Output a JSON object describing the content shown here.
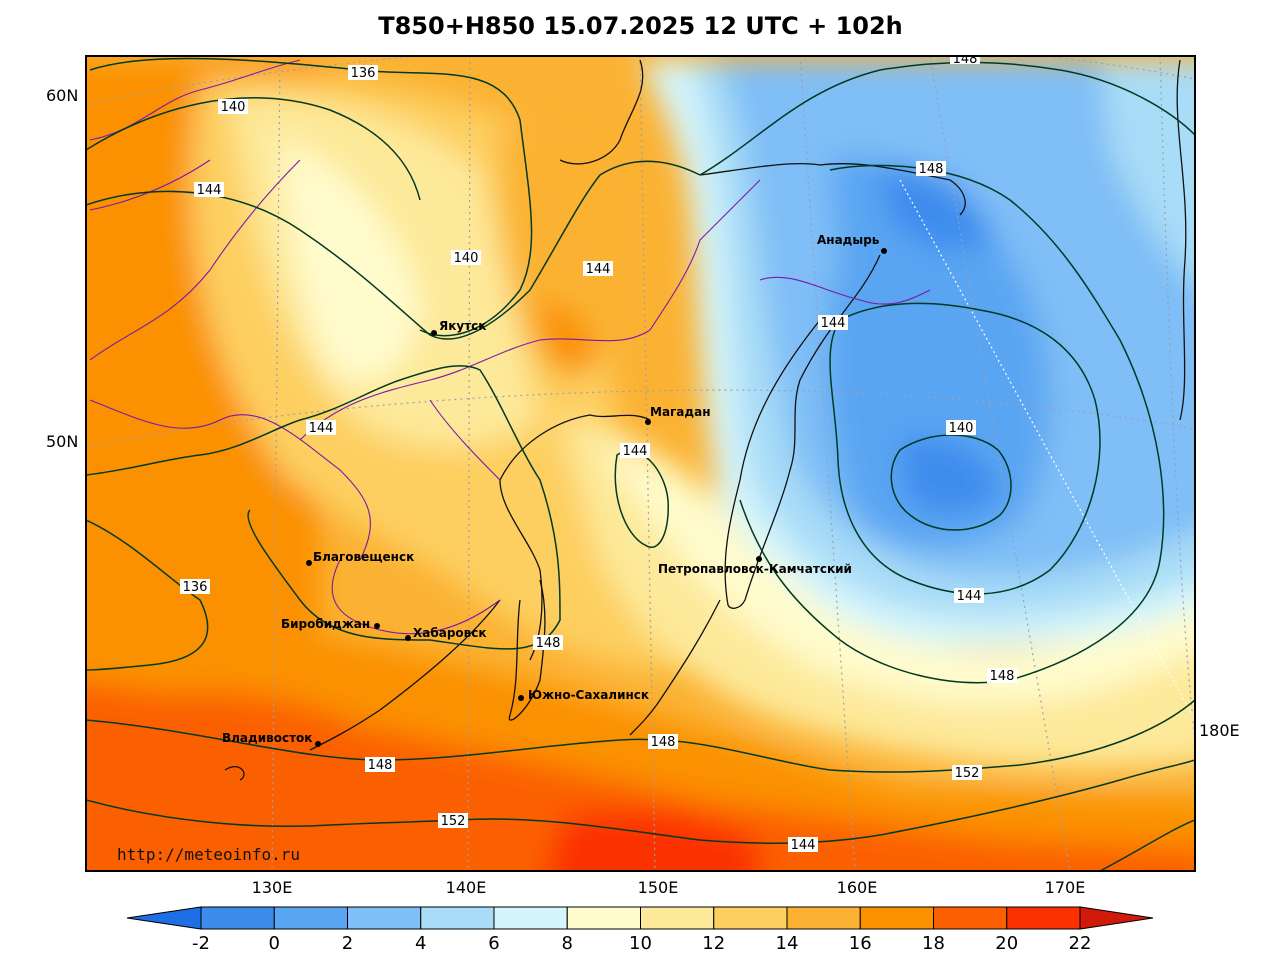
{
  "title": "T850+H850 15.07.2025 12 UTC + 102h",
  "watermark": "http://meteoinfo.ru",
  "lat_labels": [
    {
      "id": "lat-60",
      "text": "60N"
    },
    {
      "id": "lat-50",
      "text": "50N"
    }
  ],
  "lon_labels": [
    {
      "id": "lon-130",
      "text": "130E"
    },
    {
      "id": "lon-140",
      "text": "140E"
    },
    {
      "id": "lon-150",
      "text": "150E"
    },
    {
      "id": "lon-160",
      "text": "160E"
    },
    {
      "id": "lon-170",
      "text": "170E"
    },
    {
      "id": "lon-180",
      "text": "180E"
    }
  ],
  "cities": [
    {
      "id": "yakutsk",
      "name": "Якутск"
    },
    {
      "id": "magadan",
      "name": "Магадан"
    },
    {
      "id": "anadyr",
      "name": "Анадырь"
    },
    {
      "id": "blagoveshchensk",
      "name": "Благовещенск"
    },
    {
      "id": "birobidzhan",
      "name": "Биробиджан"
    },
    {
      "id": "khabarovsk",
      "name": "Хабаровск"
    },
    {
      "id": "yuzhno",
      "name": "Южно-Сахалинск"
    },
    {
      "id": "vladivostok",
      "name": "Владивосток"
    },
    {
      "id": "petropavlovsk",
      "name": "Петропавловск-Камчатский"
    }
  ],
  "contour_labels": [
    {
      "id": "c136a",
      "text": "136"
    },
    {
      "id": "c140a",
      "text": "140"
    },
    {
      "id": "c144a",
      "text": "144"
    },
    {
      "id": "c140b",
      "text": "140"
    },
    {
      "id": "c144b",
      "text": "144"
    },
    {
      "id": "c144c",
      "text": "144"
    },
    {
      "id": "c148a",
      "text": "148"
    },
    {
      "id": "c144d",
      "text": "144"
    },
    {
      "id": "c144e",
      "text": "144"
    },
    {
      "id": "c136b",
      "text": "136"
    },
    {
      "id": "c140c",
      "text": "140"
    },
    {
      "id": "c144f",
      "text": "144"
    },
    {
      "id": "c148b",
      "text": "148"
    },
    {
      "id": "c148c",
      "text": "148"
    },
    {
      "id": "c148d",
      "text": "148"
    },
    {
      "id": "c152a",
      "text": "152"
    },
    {
      "id": "c152b",
      "text": "152"
    },
    {
      "id": "c144g",
      "text": "144"
    },
    {
      "id": "c148e",
      "text": "148"
    }
  ],
  "colorbar": {
    "ticks": [
      "-2",
      "0",
      "2",
      "4",
      "6",
      "8",
      "10",
      "12",
      "14",
      "16",
      "18",
      "20",
      "22"
    ],
    "colors": [
      "#1e6fe6",
      "#3c8cee",
      "#5aa5f2",
      "#7fbef6",
      "#a9dcf7",
      "#d4f5fb",
      "#fffbcc",
      "#fde99a",
      "#fdcf60",
      "#fbb233",
      "#fb9100",
      "#fb6000",
      "#fb3000",
      "#d11a0a"
    ]
  }
}
